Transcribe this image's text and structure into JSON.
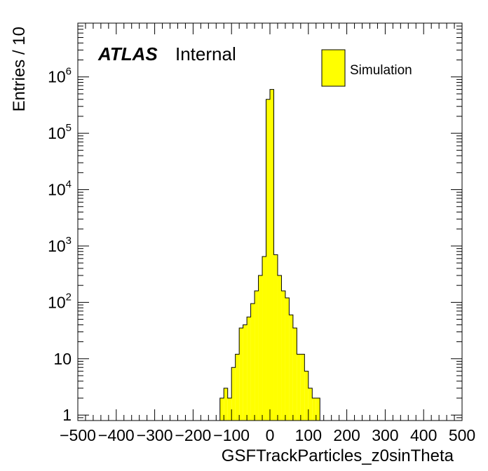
{
  "chart_data": {
    "type": "bar",
    "histogram": true,
    "log_y": true,
    "title": "",
    "xlabel": "GSFTrackParticles_z0sinTheta",
    "ylabel": "Entries / 10",
    "xlim": [
      -500,
      500
    ],
    "ylim": [
      0.8,
      9000000
    ],
    "bin_width": 10,
    "grid": false,
    "legend_position": "top-right",
    "fill_color": "#ffff00",
    "line_color": "#000000",
    "x_ticks": [
      {
        "v": -500,
        "label": "−500"
      },
      {
        "v": -400,
        "label": "−400"
      },
      {
        "v": -300,
        "label": "−300"
      },
      {
        "v": -200,
        "label": "−200"
      },
      {
        "v": -100,
        "label": "−100"
      },
      {
        "v": 0,
        "label": "0"
      },
      {
        "v": 100,
        "label": "100"
      },
      {
        "v": 200,
        "label": "200"
      },
      {
        "v": 300,
        "label": "300"
      },
      {
        "v": 400,
        "label": "400"
      },
      {
        "v": 500,
        "label": "500"
      }
    ],
    "y_ticks": [
      {
        "v": 1,
        "base": "1",
        "exp": ""
      },
      {
        "v": 10,
        "base": "10",
        "exp": ""
      },
      {
        "v": 100,
        "base": "10",
        "exp": "2"
      },
      {
        "v": 1000,
        "base": "10",
        "exp": "3"
      },
      {
        "v": 10000,
        "base": "10",
        "exp": "4"
      },
      {
        "v": 100000,
        "base": "10",
        "exp": "5"
      },
      {
        "v": 1000000,
        "base": "10",
        "exp": "6"
      }
    ],
    "series": [
      {
        "name": "Simulation",
        "bin_edges": [
          -130,
          -120,
          -110,
          -100,
          -90,
          -80,
          -70,
          -60,
          -50,
          -40,
          -30,
          -20,
          -10,
          0,
          10,
          20,
          30,
          40,
          50,
          60,
          70,
          80,
          90,
          100,
          110,
          120,
          130
        ],
        "values": [
          2,
          3,
          2,
          7,
          12,
          35,
          40,
          55,
          95,
          160,
          300,
          650,
          400000,
          600000,
          700,
          300,
          160,
          120,
          60,
          35,
          12,
          12,
          6,
          3,
          2,
          2
        ]
      }
    ]
  },
  "atlas_label": {
    "atlas": "ATLAS",
    "status": "Internal"
  }
}
